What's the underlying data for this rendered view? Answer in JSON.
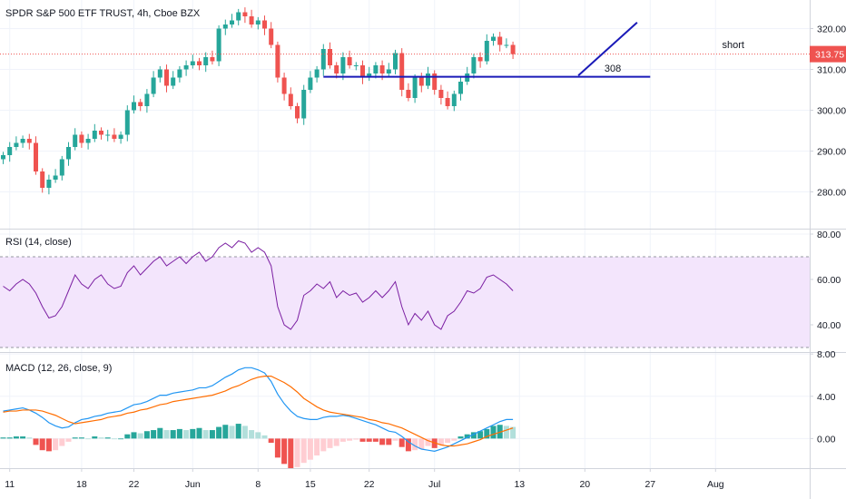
{
  "chart_data": [
    {
      "type": "candlestick",
      "title": "SPDR S&P 500 ETF TRUST, 4h, Cboe BZX",
      "ylim": [
        271,
        327
      ],
      "y_ticks": [
        "320.00",
        "310.00",
        "300.00",
        "290.00",
        "280.00"
      ],
      "y_tick_values": [
        320,
        310,
        300,
        290,
        280
      ],
      "last_price_label": "313.75",
      "last_price": 313.75,
      "annotations": [
        {
          "kind": "text",
          "text": "short",
          "bar": 110,
          "price": 315.2
        },
        {
          "kind": "text",
          "text": "308",
          "bar": 92,
          "price": 309.5
        }
      ],
      "lines": [
        {
          "name": "support",
          "x0": 49,
          "y0": 308.2,
          "x1": 99,
          "y1": 308.2
        },
        {
          "name": "up-arrow-line",
          "x0": 88,
          "y0": 308.5,
          "x1": 97,
          "y1": 321.5
        }
      ],
      "candles": {
        "open": [
          288,
          289,
          291,
          292,
          293,
          292,
          285,
          281,
          283,
          284,
          288,
          291,
          294,
          292,
          293,
          295,
          294,
          294,
          293,
          294,
          300,
          302,
          301,
          304,
          308,
          310,
          306,
          308,
          310,
          311,
          312,
          311,
          313,
          312,
          320,
          321,
          322,
          324,
          323,
          321,
          322,
          320,
          316,
          308,
          304,
          301,
          298,
          305,
          308,
          310,
          315,
          311,
          309,
          313,
          311,
          311,
          308,
          309,
          311,
          309,
          310,
          314,
          305,
          303,
          308,
          306,
          309,
          305,
          303,
          301,
          304,
          307,
          309,
          313,
          312,
          317,
          318,
          316,
          316
        ],
        "close": [
          289,
          291,
          292,
          293,
          292,
          285,
          281,
          283,
          284,
          288,
          291,
          294,
          292,
          293,
          295,
          294,
          294,
          293,
          294,
          300,
          302,
          301,
          304,
          308,
          310,
          306,
          308,
          310,
          311,
          312,
          311,
          313,
          312,
          320,
          321,
          322,
          324,
          323,
          321,
          322,
          320,
          316,
          308,
          304,
          301,
          298,
          305,
          308,
          310,
          315,
          311,
          309,
          313,
          311,
          311,
          308,
          309,
          311,
          309,
          310,
          314,
          305,
          303,
          308,
          306,
          309,
          305,
          303,
          301,
          304,
          307,
          309,
          313,
          312,
          317,
          318,
          316,
          316,
          313.75
        ]
      }
    },
    {
      "type": "line",
      "title": "RSI (14, close)",
      "ylim": [
        28,
        82
      ],
      "y_ticks": [
        "80.00",
        "60.00",
        "40.00"
      ],
      "y_tick_values": [
        80,
        60,
        40
      ],
      "band": [
        30,
        70
      ],
      "series": [
        {
          "values": [
            57,
            55,
            58,
            60,
            58,
            54,
            48,
            43,
            44,
            48,
            55,
            62,
            58,
            56,
            60,
            62,
            58,
            56,
            57,
            63,
            66,
            62,
            65,
            68,
            70,
            66,
            68,
            70,
            67,
            70,
            72,
            68,
            70,
            74,
            76,
            74,
            77,
            76,
            72,
            74,
            72,
            66,
            48,
            40,
            38,
            42,
            53,
            55,
            58,
            56,
            59,
            52,
            55,
            53,
            54,
            50,
            52,
            55,
            52,
            55,
            59,
            48,
            40,
            45,
            42,
            46,
            40,
            38,
            44,
            46,
            50,
            55,
            54,
            56,
            61,
            62,
            60,
            58,
            55
          ]
        }
      ]
    },
    {
      "type": "bar+line",
      "title": "MACD (12, 26, close, 9)",
      "ylim": [
        -2.8,
        8.1
      ],
      "y_ticks": [
        "8.00",
        "4.00",
        "0.00"
      ],
      "y_tick_values": [
        8,
        4,
        0
      ],
      "histogram": [
        0.1,
        0.1,
        0.2,
        0.2,
        0.1,
        -0.6,
        -1.1,
        -1.2,
        -1.1,
        -0.7,
        -0.3,
        0.1,
        0.1,
        0.0,
        0.2,
        0.1,
        0.1,
        0.0,
        0.0,
        0.4,
        0.6,
        0.5,
        0.7,
        0.8,
        1.0,
        0.8,
        0.8,
        0.9,
        0.8,
        0.9,
        1.0,
        0.8,
        0.8,
        1.1,
        1.3,
        1.2,
        1.4,
        1.2,
        0.8,
        0.6,
        0.3,
        -0.4,
        -1.8,
        -2.4,
        -2.8,
        -2.7,
        -2.3,
        -2.0,
        -1.6,
        -1.2,
        -0.9,
        -0.7,
        -0.3,
        -0.2,
        -0.1,
        -0.3,
        -0.3,
        -0.3,
        -0.6,
        -0.6,
        -0.2,
        -0.8,
        -1.2,
        -1.1,
        -1.0,
        -0.7,
        -0.9,
        -0.6,
        -0.4,
        -0.2,
        0.2,
        0.4,
        0.6,
        0.7,
        0.9,
        1.2,
        1.3,
        1.2,
        1.1
      ],
      "series": [
        {
          "color": "#2196f3",
          "values": [
            2.6,
            2.7,
            2.8,
            2.9,
            2.7,
            2.4,
            2.0,
            1.5,
            1.2,
            1.0,
            1.1,
            1.5,
            1.8,
            1.9,
            2.1,
            2.2,
            2.4,
            2.5,
            2.6,
            2.9,
            3.2,
            3.3,
            3.5,
            3.8,
            4.1,
            4.1,
            4.3,
            4.4,
            4.5,
            4.6,
            4.8,
            4.8,
            5.0,
            5.4,
            5.8,
            6.1,
            6.5,
            6.7,
            6.7,
            6.5,
            6.2,
            5.4,
            4.2,
            3.3,
            2.6,
            2.1,
            1.9,
            1.8,
            1.8,
            2.0,
            2.1,
            2.1,
            2.2,
            2.1,
            1.9,
            1.7,
            1.5,
            1.3,
            1.0,
            0.7,
            0.6,
            0.2,
            -0.3,
            -0.7,
            -1.0,
            -1.1,
            -1.2,
            -1.0,
            -0.8,
            -0.5,
            -0.2,
            0.1,
            0.4,
            0.7,
            1.0,
            1.3,
            1.6,
            1.8,
            1.8
          ]
        },
        {
          "color": "#ff6d00",
          "values": [
            2.5,
            2.6,
            2.6,
            2.7,
            2.7,
            2.7,
            2.6,
            2.4,
            2.2,
            1.9,
            1.6,
            1.4,
            1.5,
            1.6,
            1.7,
            1.8,
            2.0,
            2.1,
            2.2,
            2.4,
            2.5,
            2.7,
            2.8,
            3.0,
            3.2,
            3.3,
            3.5,
            3.6,
            3.7,
            3.8,
            3.9,
            4.0,
            4.1,
            4.3,
            4.5,
            4.8,
            5.0,
            5.3,
            5.6,
            5.8,
            5.9,
            5.9,
            5.6,
            5.3,
            4.9,
            4.4,
            3.8,
            3.4,
            3.0,
            2.7,
            2.5,
            2.4,
            2.3,
            2.2,
            2.1,
            2.0,
            1.8,
            1.7,
            1.5,
            1.4,
            1.2,
            1.0,
            0.7,
            0.4,
            0.1,
            -0.2,
            -0.4,
            -0.6,
            -0.7,
            -0.7,
            -0.6,
            -0.5,
            -0.3,
            -0.1,
            0.2,
            0.4,
            0.6,
            0.8,
            1.0
          ]
        }
      ]
    }
  ],
  "x_axis": {
    "labels": [
      "11",
      "18",
      "22",
      "Jun",
      "8",
      "15",
      "22",
      "Jul",
      "13",
      "20",
      "27",
      "Aug"
    ],
    "bar_positions": [
      1,
      12,
      20,
      29,
      39,
      47,
      56,
      66,
      79,
      89,
      99,
      109
    ]
  },
  "colors": {
    "up": "#26a69a",
    "down": "#ef5350",
    "trendline": "#1a1ab8",
    "price_line": "#ef5350",
    "rsi_line": "#7b1fa2",
    "rsi_band": "#f3e5fc",
    "hist_pos_strong": "#26a69a",
    "hist_pos_weak": "#b2dfdb",
    "hist_neg_strong": "#ef5350",
    "hist_neg_weak": "#ffcdd2"
  }
}
